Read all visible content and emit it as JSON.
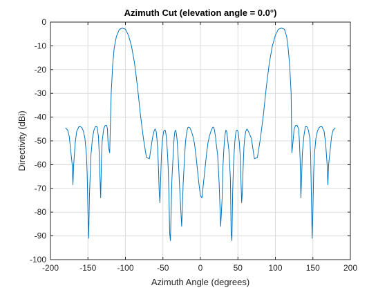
{
  "chart_data": {
    "type": "line",
    "title": "Azimuth Cut (elevation angle = 0.0°)",
    "xlabel": "Azimuth Angle (degrees)",
    "ylabel": "Directivity (dBi)",
    "xlim": [
      -200,
      200
    ],
    "ylim": [
      -100,
      0
    ],
    "xticks": [
      -200,
      -150,
      -100,
      -50,
      0,
      50,
      100,
      150,
      200
    ],
    "yticks": [
      0,
      -10,
      -20,
      -30,
      -40,
      -50,
      -60,
      -70,
      -80,
      -90,
      -100
    ],
    "grid": true,
    "series_color": "#0072BD",
    "series": [
      {
        "x": [
          -180,
          -177,
          -175,
          -173,
          -171,
          -170,
          -169,
          -167,
          -165,
          -162,
          -160,
          -158,
          -156,
          -154,
          -152,
          -151,
          -150,
          -149,
          -148,
          -146,
          -144,
          -142,
          -140,
          -138,
          -136,
          -135,
          -134,
          -133,
          -132,
          -131,
          -129,
          -127,
          -125,
          -124,
          -123,
          -121,
          -119,
          -117,
          -115,
          -112,
          -108,
          -104,
          -100,
          -96,
          -92,
          -88,
          -84,
          -80,
          -76,
          -72,
          -68,
          -64,
          -62,
          -60.5,
          -59,
          -58,
          -57,
          -56,
          -55,
          -54,
          -53,
          -52,
          -51,
          -50,
          -49,
          -48,
          -47,
          -46,
          -45,
          -44,
          -43,
          -42,
          -41,
          -40,
          -38,
          -36,
          -35,
          -34,
          -33,
          -32,
          -31,
          -30,
          -29,
          -27,
          -25,
          -23,
          -21,
          -20,
          -19,
          -18,
          -17,
          -16,
          -14,
          -12,
          -10,
          -8,
          -6,
          -4,
          -2,
          0,
          2,
          4,
          6,
          8,
          10,
          12,
          14,
          16,
          17,
          18,
          19,
          20,
          21,
          23,
          25,
          27,
          29,
          30,
          31,
          32,
          33,
          34,
          35,
          36,
          38,
          40,
          41,
          42,
          43,
          44,
          45,
          46,
          47,
          48,
          49,
          50,
          51,
          52,
          53,
          54,
          55,
          56,
          57,
          58,
          59,
          60.5,
          62,
          64,
          68,
          72,
          76,
          80,
          84,
          88,
          92,
          96,
          100,
          104,
          108,
          112,
          115,
          117,
          119,
          121,
          122,
          123,
          125,
          127,
          129,
          131,
          132,
          133,
          134,
          135,
          136,
          138,
          140,
          142,
          144,
          146,
          147,
          148,
          149,
          150,
          151,
          152,
          154,
          156,
          158,
          160,
          162,
          165,
          167,
          169,
          170,
          171,
          173,
          175,
          177,
          180
        ],
        "y": [
          -44.5,
          -45.5,
          -48,
          -54,
          -60,
          -68.5,
          -60,
          -51,
          -46,
          -44,
          -44,
          -44.5,
          -46,
          -49,
          -56,
          -64,
          -80,
          -91,
          -73,
          -56,
          -49,
          -45.5,
          -44,
          -44,
          -48,
          -55,
          -65,
          -74,
          -58,
          -50,
          -45,
          -43.5,
          -43.5,
          -45,
          -52,
          -55,
          -30,
          -18,
          -11,
          -6,
          -3,
          -2.5,
          -3,
          -5.5,
          -10,
          -17,
          -27,
          -39,
          -49,
          -57,
          -57.5,
          -49,
          -46,
          -45,
          -46,
          -49,
          -53,
          -61,
          -71,
          -76,
          -66,
          -56,
          -51,
          -48,
          -46,
          -45.5,
          -45.5,
          -47,
          -50,
          -55,
          -61,
          -72,
          -89,
          -92,
          -66,
          -54,
          -48.5,
          -46,
          -45.5,
          -47,
          -50,
          -55,
          -61,
          -74,
          -86,
          -68,
          -56,
          -51,
          -48,
          -46,
          -44.5,
          -44.2,
          -44.5,
          -46,
          -48,
          -51,
          -56,
          -62,
          -68,
          -73,
          -74,
          -68,
          -62,
          -56,
          -51,
          -48,
          -46,
          -44.5,
          -44.2,
          -44.5,
          -46,
          -48,
          -51,
          -56,
          -68,
          -86,
          -74,
          -61,
          -55,
          -50,
          -47,
          -45.5,
          -46,
          -48.5,
          -54,
          -66,
          -89,
          -92,
          -72,
          -61,
          -55,
          -50,
          -47,
          -45.5,
          -45.5,
          -46,
          -48,
          -51,
          -56,
          -66,
          -76,
          -71,
          -61,
          -53,
          -49,
          -46,
          -45,
          -46,
          -49,
          -57.5,
          -57,
          -49,
          -39,
          -27,
          -17,
          -10,
          -5.5,
          -3,
          -2.5,
          -3,
          -6,
          -11,
          -18,
          -30,
          -55,
          -52,
          -45,
          -43.5,
          -43.5,
          -45,
          -50,
          -58,
          -74,
          -65,
          -55,
          -48,
          -44,
          -44,
          -45.5,
          -49,
          -56,
          -73,
          -91,
          -80,
          -64,
          -56,
          -49,
          -46,
          -44.5,
          -44,
          -44,
          -46,
          -51,
          -60,
          -68.5,
          -60,
          -54,
          -48,
          -45.5,
          -44.5
        ]
      }
    ]
  }
}
